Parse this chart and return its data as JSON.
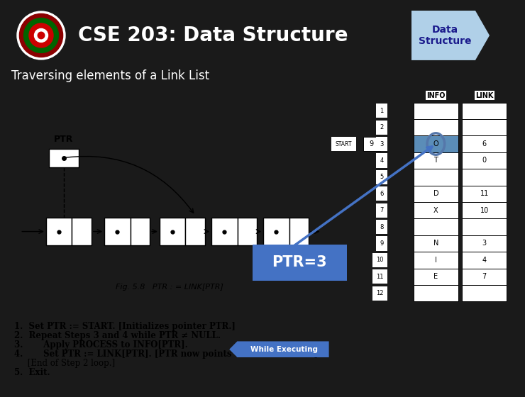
{
  "title": "CSE 203: Data Structure",
  "subtitle": "Traversing elements of a Link List",
  "badge_text": "Data\nStructure",
  "header_bg": "#7B0D1E",
  "header_text_color": "#FFFFFF",
  "badge_bg": "#B0D0E8",
  "body_bg": "#1a1a1a",
  "ptr_box_color": "#4472C4",
  "ptr_box_text": "PTR=3",
  "while_box_color": "#4472C4",
  "while_box_text": "While Executing",
  "fig_caption": "Fig. 5.8   PTR : = LINK[PTR]",
  "table_rows": [
    {
      "row": 1,
      "info": "",
      "link": ""
    },
    {
      "row": 2,
      "info": "",
      "link": ""
    },
    {
      "row": 3,
      "info": "O",
      "link": "6",
      "highlighted": true
    },
    {
      "row": 4,
      "info": "T",
      "link": "0"
    },
    {
      "row": 5,
      "info": "",
      "link": ""
    },
    {
      "row": 6,
      "info": "D",
      "link": "11"
    },
    {
      "row": 7,
      "info": "X",
      "link": "10"
    },
    {
      "row": 8,
      "info": "",
      "link": ""
    },
    {
      "row": 9,
      "info": "N",
      "link": "3"
    },
    {
      "row": 10,
      "info": "I",
      "link": "4"
    },
    {
      "row": 11,
      "info": "E",
      "link": "7"
    },
    {
      "row": 12,
      "info": "",
      "link": ""
    }
  ],
  "start_label": "START",
  "start_value": "9",
  "footer_bg": "#7B0D1E",
  "algo_lines": [
    "1.  Set PTR := START. [Initializes pointer PTR.]",
    "2.  Repeat Steps 3 and 4 while PTR ≠ NULL.",
    "3.       Apply PROCESS to INFO[PTR].",
    "4.       Set PTR := LINK[PTR]. [PTR now points to the next node.]",
    "     [End of Step 2 loop.]",
    "5.  Exit."
  ],
  "algo_bold": [
    true,
    true,
    true,
    true,
    false,
    true
  ]
}
